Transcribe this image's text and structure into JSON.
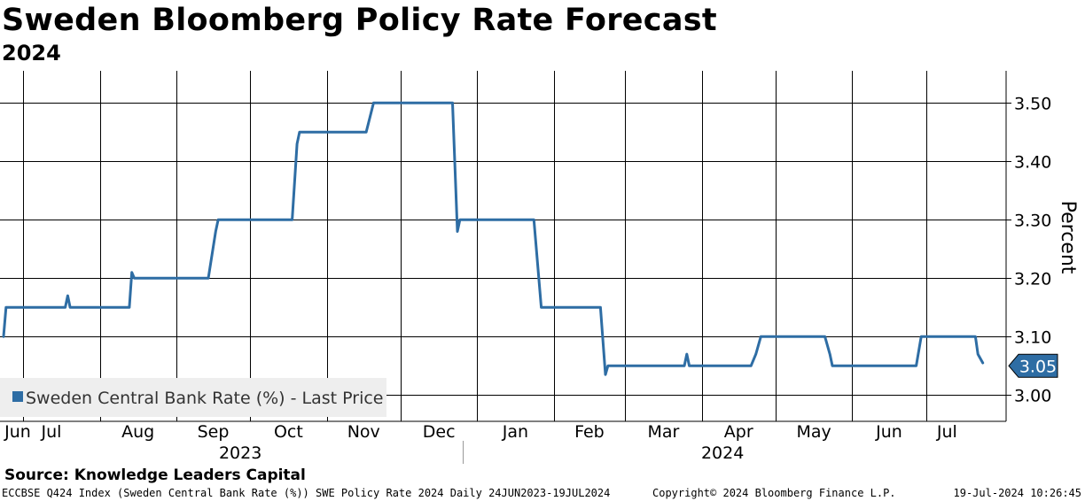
{
  "title": "Sweden Bloomberg Policy Rate Forecast",
  "subtitle": "2024",
  "source": "Source: Knowledge Leaders Capital",
  "footer": {
    "left": "ECCBSE Q424 Index (Sweden Central Bank Rate (%)) SWE Policy Rate 2024  Daily 24JUN2023-19JUL2024",
    "copyright": "Copyright© 2024 Bloomberg Finance L.P.",
    "timestamp": "19-Jul-2024 10:26:45"
  },
  "colors": {
    "line": "#2e6da4",
    "grid": "#000000",
    "legend_bg": "#eeeeee",
    "badge": "#2e6da4"
  },
  "chart_data": {
    "type": "line",
    "ylabel": "Percent",
    "ylim": [
      2.955,
      3.555
    ],
    "yticks": [
      3.0,
      3.1,
      3.2,
      3.3,
      3.4,
      3.5
    ],
    "ytick_labels": [
      "3.00",
      "3.10",
      "3.20",
      "3.30",
      "3.40",
      "3.50"
    ],
    "xlim": [
      0,
      391
    ],
    "month_ticks": [
      {
        "label": "Jun",
        "pos": 0
      },
      {
        "label": "Jul",
        "pos": 8
      },
      {
        "label": "Aug",
        "pos": 39
      },
      {
        "label": "Sep",
        "pos": 70
      },
      {
        "label": "Oct",
        "pos": 100
      },
      {
        "label": "Nov",
        "pos": 131
      },
      {
        "label": "Dec",
        "pos": 161
      },
      {
        "label": "Jan",
        "pos": 192
      },
      {
        "label": "Feb",
        "pos": 223
      },
      {
        "label": "Mar",
        "pos": 252
      },
      {
        "label": "Apr",
        "pos": 283
      },
      {
        "label": "May",
        "pos": 313
      },
      {
        "label": "Jun",
        "pos": 344
      },
      {
        "label": "Jul",
        "pos": 374
      }
    ],
    "year_labels": [
      {
        "label": "2023",
        "start": 0,
        "end": 192
      },
      {
        "label": "2024",
        "start": 192,
        "end": 391
      }
    ],
    "legend": "Sweden Central Bank Rate (%) - Last Price",
    "last_value": 3.05,
    "last_label": "3.05",
    "series": [
      {
        "name": "Sweden Central Bank Rate (%) - Last Price",
        "points": [
          [
            0,
            3.1
          ],
          [
            1,
            3.15
          ],
          [
            25,
            3.15
          ],
          [
            26,
            3.17
          ],
          [
            27,
            3.15
          ],
          [
            51,
            3.15
          ],
          [
            52,
            3.21
          ],
          [
            53,
            3.2
          ],
          [
            83,
            3.2
          ],
          [
            86,
            3.28
          ],
          [
            87,
            3.3
          ],
          [
            117,
            3.3
          ],
          [
            119,
            3.43
          ],
          [
            120,
            3.45
          ],
          [
            147,
            3.45
          ],
          [
            150,
            3.5
          ],
          [
            182,
            3.5
          ],
          [
            184,
            3.28
          ],
          [
            185,
            3.3
          ],
          [
            215,
            3.3
          ],
          [
            218,
            3.15
          ],
          [
            242,
            3.15
          ],
          [
            244,
            3.035
          ],
          [
            245,
            3.05
          ],
          [
            276,
            3.05
          ],
          [
            277,
            3.07
          ],
          [
            278,
            3.05
          ],
          [
            303,
            3.05
          ],
          [
            305,
            3.07
          ],
          [
            307,
            3.1
          ],
          [
            333,
            3.1
          ],
          [
            335,
            3.07
          ],
          [
            336,
            3.05
          ],
          [
            370,
            3.05
          ],
          [
            372,
            3.1
          ],
          [
            394,
            3.1
          ],
          [
            395,
            3.07
          ],
          [
            397,
            3.055
          ]
        ]
      }
    ]
  }
}
